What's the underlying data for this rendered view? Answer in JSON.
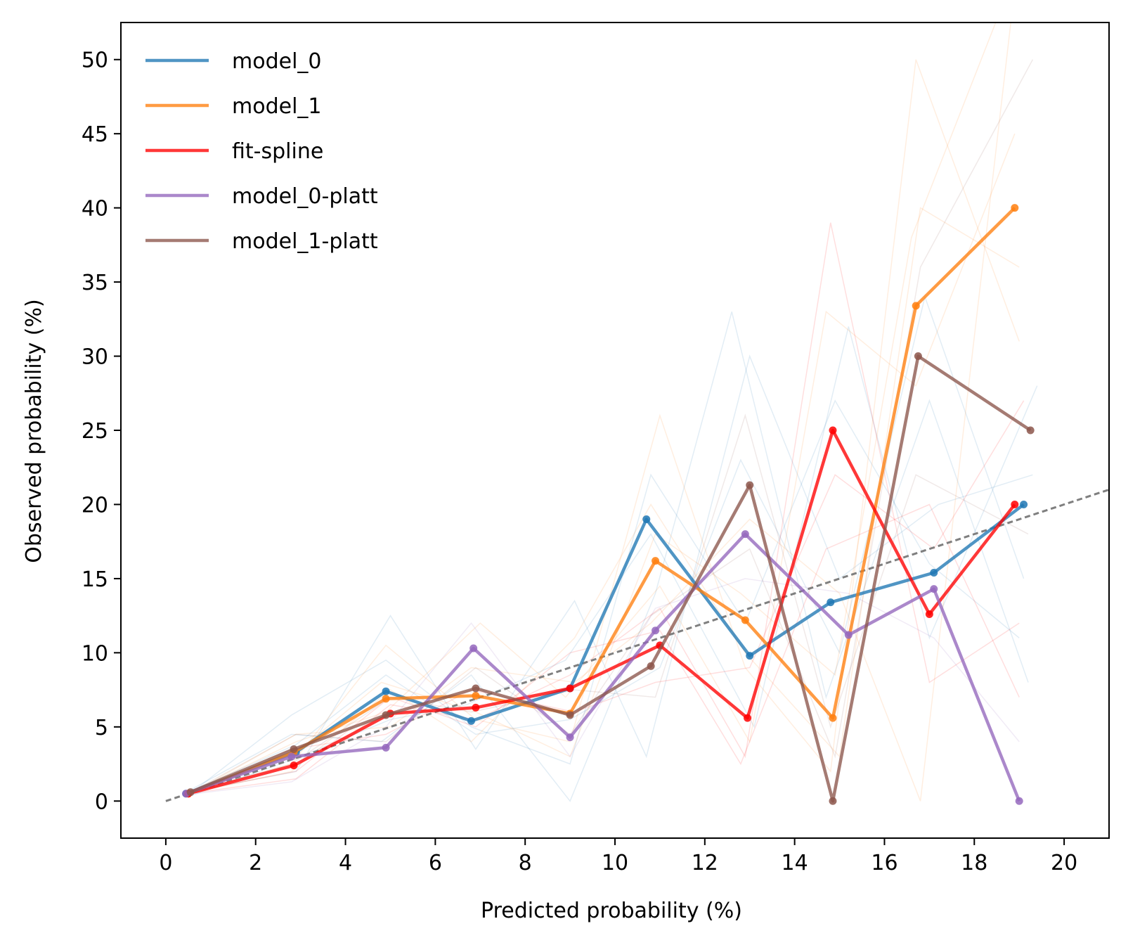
{
  "chart_data": {
    "type": "line",
    "title": "",
    "xlabel": "Predicted probability (%)",
    "ylabel": "Observed probability (%)",
    "xlim": [
      -1,
      21
    ],
    "ylim": [
      -2.5,
      52.5
    ],
    "xticks": [
      0,
      2,
      4,
      6,
      8,
      10,
      12,
      14,
      16,
      18,
      20
    ],
    "yticks": [
      0,
      5,
      10,
      15,
      20,
      25,
      30,
      35,
      40,
      45,
      50
    ],
    "grid": false,
    "legend_position": "top-left",
    "reference_line": {
      "style": "dashed",
      "color": "#7f7f7f",
      "x": [
        0,
        21
      ],
      "y": [
        0,
        21
      ]
    },
    "series": [
      {
        "name": "model_0",
        "color": "#1f77b4",
        "x": [
          0.45,
          2.9,
          4.9,
          6.8,
          9.0,
          10.7,
          13.0,
          14.8,
          17.1,
          19.1
        ],
        "y": [
          0.5,
          3.3,
          7.4,
          5.4,
          7.6,
          19.0,
          9.8,
          13.4,
          15.4,
          20.0
        ]
      },
      {
        "name": "model_1",
        "color": "#ff7f0e",
        "x": [
          0.5,
          2.85,
          4.9,
          6.9,
          9.0,
          10.9,
          12.9,
          14.85,
          16.7,
          18.9
        ],
        "y": [
          0.5,
          3.3,
          6.9,
          7.1,
          5.9,
          16.2,
          12.2,
          5.6,
          33.4,
          40.0
        ]
      },
      {
        "name": "fit-spline",
        "color": "#ff0000",
        "x": [
          0.5,
          2.85,
          5.0,
          6.9,
          9.0,
          11.0,
          12.95,
          14.85,
          17.0,
          18.9
        ],
        "y": [
          0.5,
          2.4,
          5.9,
          6.3,
          7.6,
          10.5,
          5.6,
          25.0,
          12.6,
          20.0
        ]
      },
      {
        "name": "model_0-platt",
        "color": "#9467bd",
        "x": [
          0.45,
          2.8,
          4.9,
          6.85,
          9.0,
          10.9,
          12.9,
          15.2,
          17.1,
          19.0
        ],
        "y": [
          0.5,
          3.0,
          3.6,
          10.3,
          4.3,
          11.5,
          18.0,
          11.2,
          14.3,
          0.0
        ]
      },
      {
        "name": "model_1-platt",
        "color": "#8c564b",
        "x": [
          0.55,
          2.85,
          4.9,
          6.9,
          9.0,
          10.8,
          13.0,
          14.85,
          16.75,
          19.25
        ],
        "y": [
          0.6,
          3.5,
          5.8,
          7.6,
          5.8,
          9.1,
          21.3,
          0.0,
          30.0,
          25.0
        ]
      }
    ],
    "background_traces": [
      {
        "color": "#1f77b4",
        "x": [
          0.5,
          2.8,
          4.9,
          6.8,
          9.0,
          10.8,
          12.9,
          14.9,
          17.0,
          19.0
        ],
        "y": [
          0.4,
          5.8,
          9.5,
          5.0,
          2.5,
          22.0,
          12.0,
          27.0,
          16.0,
          11.0
        ]
      },
      {
        "color": "#1f77b4",
        "x": [
          0.5,
          2.9,
          5.0,
          6.9,
          9.1,
          10.7,
          13.0,
          15.0,
          17.2,
          19.3
        ],
        "y": [
          0.6,
          2.0,
          12.5,
          3.5,
          13.5,
          3.0,
          30.0,
          15.0,
          20.0,
          22.0
        ]
      },
      {
        "color": "#1f77b4",
        "x": [
          0.4,
          2.8,
          4.8,
          6.8,
          9.0,
          10.9,
          12.6,
          14.7,
          17.0,
          19.2
        ],
        "y": [
          0.5,
          4.5,
          4.0,
          8.5,
          0.0,
          14.0,
          33.0,
          7.0,
          27.0,
          8.0
        ]
      },
      {
        "color": "#1f77b4",
        "x": [
          0.5,
          3.0,
          5.0,
          6.7,
          8.9,
          10.8,
          13.1,
          15.2,
          17.0,
          19.4
        ],
        "y": [
          0.3,
          3.0,
          5.5,
          6.5,
          9.5,
          18.0,
          5.0,
          32.0,
          11.0,
          28.0
        ]
      },
      {
        "color": "#1f77b4",
        "x": [
          0.5,
          2.9,
          4.9,
          6.9,
          9.0,
          11.0,
          12.8,
          15.0,
          16.9,
          19.1
        ],
        "y": [
          0.6,
          3.8,
          8.5,
          4.5,
          5.5,
          9.0,
          23.0,
          10.0,
          34.0,
          15.0
        ]
      },
      {
        "color": "#ff7f0e",
        "x": [
          0.5,
          2.8,
          4.9,
          6.9,
          9.0,
          11.0,
          12.9,
          14.8,
          16.7,
          19.0
        ],
        "y": [
          0.5,
          2.5,
          10.5,
          5.5,
          4.0,
          26.0,
          9.0,
          2.0,
          50.0,
          31.0
        ]
      },
      {
        "color": "#ff7f0e",
        "x": [
          0.5,
          2.9,
          5.0,
          6.8,
          9.1,
          10.8,
          13.0,
          15.0,
          16.8,
          19.1
        ],
        "y": [
          0.4,
          4.5,
          5.0,
          9.0,
          8.0,
          12.0,
          19.0,
          14.0,
          0.0,
          60.0
        ]
      },
      {
        "color": "#ff7f0e",
        "x": [
          0.5,
          2.8,
          4.8,
          6.9,
          9.0,
          10.9,
          12.8,
          14.9,
          16.6,
          18.8
        ],
        "y": [
          0.6,
          3.0,
          8.0,
          6.0,
          3.0,
          18.0,
          14.0,
          8.5,
          38.0,
          55.0
        ]
      },
      {
        "color": "#ff7f0e",
        "x": [
          0.5,
          2.9,
          4.9,
          7.0,
          8.9,
          11.0,
          13.0,
          14.7,
          16.7,
          18.9
        ],
        "y": [
          0.5,
          4.0,
          6.0,
          12.0,
          7.0,
          14.5,
          4.0,
          33.0,
          28.0,
          45.0
        ]
      },
      {
        "color": "#ff7f0e",
        "x": [
          0.5,
          2.8,
          5.0,
          6.8,
          9.1,
          10.8,
          12.9,
          15.0,
          16.8,
          19.0
        ],
        "y": [
          0.5,
          2.0,
          7.5,
          4.0,
          11.0,
          20.0,
          10.0,
          3.0,
          40.0,
          36.0
        ]
      },
      {
        "color": "#ff0000",
        "x": [
          0.5,
          2.9,
          5.0,
          6.9,
          9.0,
          11.0,
          12.9,
          14.8,
          17.0,
          19.0
        ],
        "y": [
          0.5,
          1.5,
          6.5,
          5.5,
          8.5,
          13.0,
          3.0,
          39.0,
          8.0,
          12.0
        ]
      },
      {
        "color": "#ff0000",
        "x": [
          0.5,
          2.8,
          4.9,
          6.8,
          9.1,
          10.9,
          13.0,
          14.9,
          17.1,
          19.1
        ],
        "y": [
          0.4,
          3.5,
          4.5,
          7.5,
          6.0,
          8.0,
          9.0,
          22.0,
          17.0,
          27.0
        ]
      },
      {
        "color": "#ff0000",
        "x": [
          0.5,
          2.9,
          5.0,
          6.9,
          9.0,
          11.0,
          12.8,
          14.7,
          17.0,
          19.0
        ],
        "y": [
          0.6,
          2.0,
          7.0,
          5.0,
          10.0,
          11.5,
          2.5,
          17.0,
          20.0,
          7.0
        ]
      },
      {
        "color": "#9467bd",
        "x": [
          0.4,
          2.8,
          4.9,
          6.8,
          9.0,
          10.9,
          12.9,
          15.2,
          17.1,
          19.0
        ],
        "y": [
          0.4,
          1.3,
          5.0,
          12.0,
          3.0,
          13.0,
          15.0,
          14.0,
          11.0,
          4.0
        ]
      },
      {
        "color": "#8c564b",
        "x": [
          0.5,
          2.9,
          4.9,
          6.9,
          9.0,
          10.8,
          13.0,
          14.9,
          16.8,
          19.3
        ],
        "y": [
          0.5,
          4.5,
          4.0,
          9.0,
          4.5,
          12.5,
          17.0,
          3.0,
          36.0,
          50.0
        ]
      },
      {
        "color": "#8c564b",
        "x": [
          0.5,
          2.8,
          5.0,
          6.8,
          9.1,
          10.9,
          12.9,
          14.8,
          16.7,
          19.2
        ],
        "y": [
          0.6,
          2.5,
          7.0,
          6.0,
          7.5,
          7.0,
          26.0,
          5.0,
          22.0,
          18.0
        ]
      }
    ]
  }
}
